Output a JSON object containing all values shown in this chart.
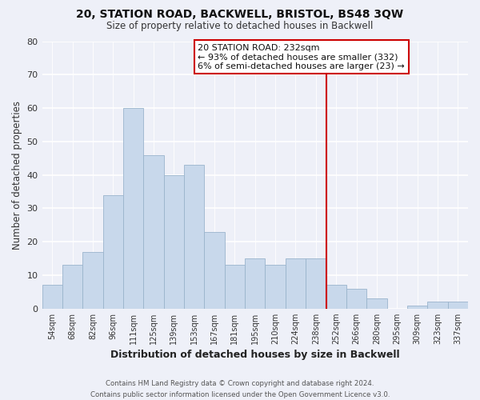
{
  "title": "20, STATION ROAD, BACKWELL, BRISTOL, BS48 3QW",
  "subtitle": "Size of property relative to detached houses in Backwell",
  "xlabel": "Distribution of detached houses by size in Backwell",
  "ylabel": "Number of detached properties",
  "footer_line1": "Contains HM Land Registry data © Crown copyright and database right 2024.",
  "footer_line2": "Contains public sector information licensed under the Open Government Licence v3.0.",
  "bin_labels": [
    "54sqm",
    "68sqm",
    "82sqm",
    "96sqm",
    "111sqm",
    "125sqm",
    "139sqm",
    "153sqm",
    "167sqm",
    "181sqm",
    "195sqm",
    "210sqm",
    "224sqm",
    "238sqm",
    "252sqm",
    "266sqm",
    "280sqm",
    "295sqm",
    "309sqm",
    "323sqm",
    "337sqm"
  ],
  "bar_heights": [
    7,
    13,
    17,
    34,
    60,
    46,
    40,
    43,
    23,
    13,
    15,
    13,
    15,
    15,
    7,
    6,
    3,
    0,
    1,
    2,
    2
  ],
  "bar_color": "#c8d8eb",
  "bar_edgecolor": "#9ab4cc",
  "vline_x_index": 13.5,
  "vline_color": "#cc0000",
  "ylim": [
    0,
    80
  ],
  "yticks": [
    0,
    10,
    20,
    30,
    40,
    50,
    60,
    70,
    80
  ],
  "annotation_title": "20 STATION ROAD: 232sqm",
  "annotation_line1": "← 93% of detached houses are smaller (332)",
  "annotation_line2": "6% of semi-detached houses are larger (23) →",
  "annotation_box_color": "#ffffff",
  "annotation_box_edgecolor": "#cc0000",
  "background_color": "#eef0f8"
}
